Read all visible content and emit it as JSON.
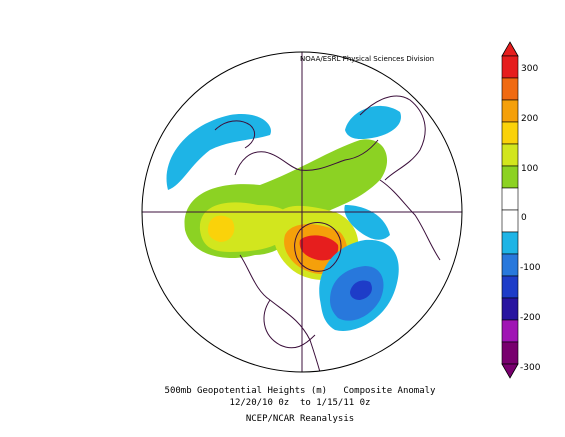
{
  "credit": "NOAA/ESRL Physical Sciences Division",
  "caption": {
    "line1": "500mb Geopotential Heights (m)   Composite Anomaly",
    "line2": "12/20/10 0z  to 1/15/11 0z",
    "line3": "NCEP/NCAR Reanalysis"
  },
  "colorbar": {
    "ticks": [
      "300",
      "200",
      "100",
      "0",
      "-100",
      "-200",
      "-300"
    ],
    "colors": [
      "#e61e1e",
      "#f06a12",
      "#f5a00a",
      "#fad20a",
      "#d2e61e",
      "#8cd223",
      "#ffffff",
      "#ffffff",
      "#1eb4e6",
      "#2878dc",
      "#1e3cc8",
      "#2814a0",
      "#a014b4",
      "#78006e"
    ]
  }
}
